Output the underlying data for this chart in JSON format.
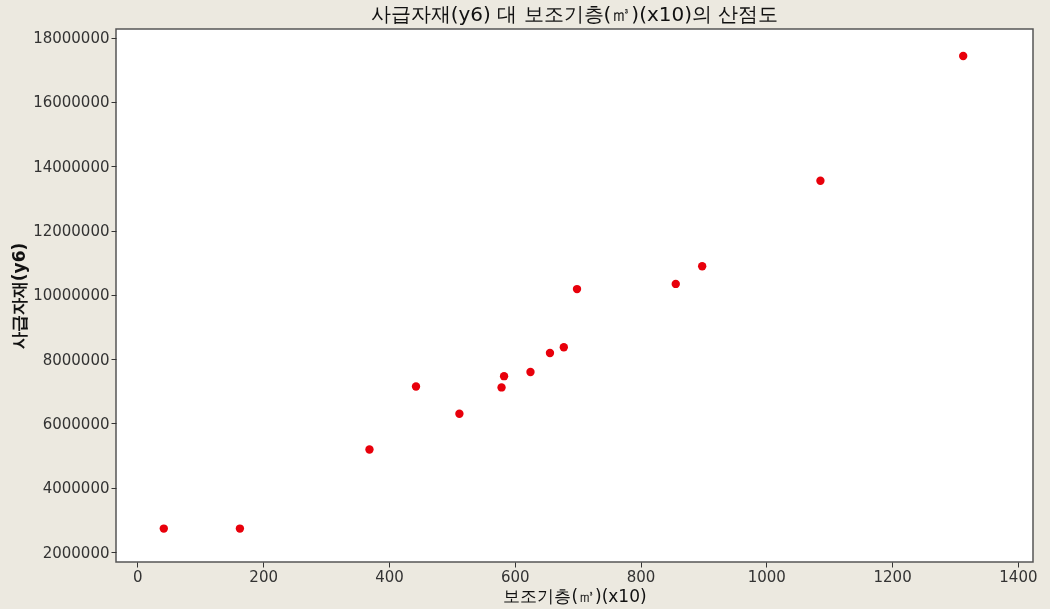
{
  "chart_data": {
    "type": "scatter",
    "title": "사급자재(y6) 대 보조기층(㎥)(x10)의 산점도",
    "xlabel": "보조기층(㎥)(x10)",
    "ylabel": "사급자재(y6)",
    "x": [
      42,
      163,
      369,
      443,
      512,
      579,
      583,
      625,
      656,
      678,
      699,
      856,
      898,
      1086,
      1313
    ],
    "series": [
      {
        "color": "#e8000b",
        "values": [
          2730000,
          2730000,
          5190000,
          7150000,
          6300000,
          7120000,
          7470000,
          7600000,
          8190000,
          8370000,
          10180000,
          10340000,
          10890000,
          13550000,
          17430000
        ]
      }
    ],
    "xlim": [
      -34,
      1424
    ],
    "xticks": [
      0,
      200,
      400,
      600,
      800,
      1000,
      1200,
      1400
    ],
    "ylim": [
      1690000,
      18270000
    ],
    "yticks": [
      2000000,
      4000000,
      6000000,
      8000000,
      10000000,
      12000000,
      14000000,
      16000000,
      18000000
    ],
    "grid": false,
    "legend": false,
    "marker": "circle"
  }
}
